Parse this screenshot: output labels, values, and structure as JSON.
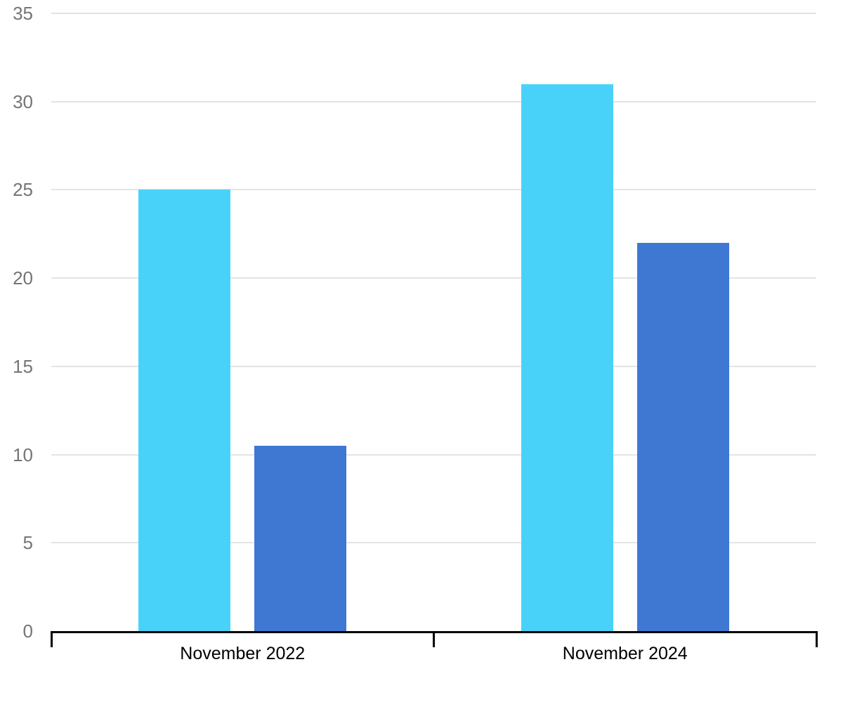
{
  "chart_data": {
    "type": "bar",
    "title": "",
    "xlabel": "",
    "ylabel": "",
    "categories": [
      "November 2022",
      "November 2024"
    ],
    "series": [
      {
        "color": "#49D2F9",
        "values": [
          25,
          31
        ]
      },
      {
        "color": "#3E78D2",
        "values": [
          10.5,
          22
        ]
      }
    ],
    "ylim": [
      0,
      35
    ],
    "yticks": [
      0,
      5,
      10,
      15,
      20,
      25,
      30,
      35
    ],
    "grid": true,
    "legend": false
  },
  "colors": {
    "background": "#FFFFFF",
    "series_cyan": "#49D2F9",
    "series_blue": "#3E78D2",
    "gridline": "#E4E4E4",
    "axis": "#000000",
    "y_tick_label": "#757575",
    "x_category_label": "#000000"
  }
}
